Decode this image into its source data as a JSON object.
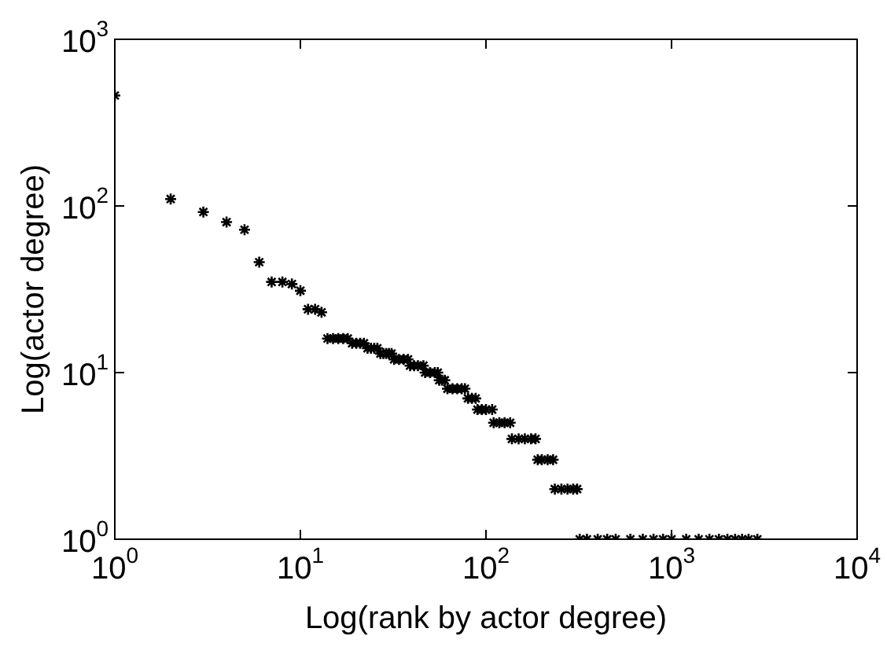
{
  "chart_data": {
    "type": "scatter",
    "xlabel": "Log(rank by actor degree)",
    "ylabel": "Log(actor degree)",
    "log": "xy",
    "marker": "cross",
    "grid": false,
    "xlim": [
      1,
      10000
    ],
    "ylim": [
      1,
      1000
    ],
    "xticks": [
      {
        "value": 1,
        "label": "10$^{0}$"
      },
      {
        "value": 10,
        "label": "10$^{1}$"
      },
      {
        "value": 100,
        "label": "10$^{2}$"
      },
      {
        "value": 1000,
        "label": "10$^{3}$"
      },
      {
        "value": 10000,
        "label": "10$^{4}$"
      }
    ],
    "yticks": [
      {
        "value": 1,
        "label": "10$^{0}$"
      },
      {
        "value": 10,
        "label": "10$^{1}$"
      },
      {
        "value": 100,
        "label": "10$^{2}$"
      },
      {
        "value": 1000,
        "label": "10$^{3}$"
      }
    ],
    "series": [
      {
        "color": "#000000",
        "x": [
          1,
          2,
          3,
          4,
          5,
          6,
          7,
          8,
          9,
          10,
          11,
          12,
          13,
          14,
          15,
          16,
          17,
          18,
          19,
          20,
          21,
          22,
          23,
          24,
          25,
          26,
          27,
          28,
          29,
          30,
          31,
          32,
          34,
          36,
          38,
          39,
          41,
          43,
          46,
          47,
          50,
          53,
          55,
          56,
          58,
          60,
          62,
          66,
          70,
          74,
          77,
          80,
          84,
          88,
          90,
          95,
          100,
          108,
          110,
          118,
          126,
          135,
          138,
          150,
          162,
          175,
          185,
          190,
          200,
          215,
          230,
          235,
          255,
          275,
          295,
          310,
          320,
          350,
          400,
          450,
          500,
          600,
          700,
          800,
          900,
          1000,
          1200,
          1400,
          1600,
          1800,
          2000,
          2200,
          2400,
          2600,
          2900
        ],
        "values": [
          460,
          110,
          92,
          80,
          72,
          46,
          35,
          35,
          34,
          31,
          24,
          24,
          23,
          16,
          16,
          16,
          16,
          16,
          15,
          15,
          15,
          15,
          14,
          14,
          14,
          14,
          13,
          13,
          13,
          13,
          13,
          12,
          12,
          12,
          12,
          11,
          11,
          11,
          11,
          10,
          10,
          10,
          10,
          9,
          9,
          9,
          8,
          8,
          8,
          8,
          8,
          7,
          7,
          7,
          6,
          6,
          6,
          6,
          5,
          5,
          5,
          5,
          4,
          4,
          4,
          4,
          4,
          3,
          3,
          3,
          3,
          2,
          2,
          2,
          2,
          2,
          1,
          1,
          1,
          1,
          1,
          1,
          1,
          1,
          1,
          1,
          1,
          1,
          1,
          1,
          1,
          1,
          1,
          1,
          1
        ]
      }
    ]
  }
}
